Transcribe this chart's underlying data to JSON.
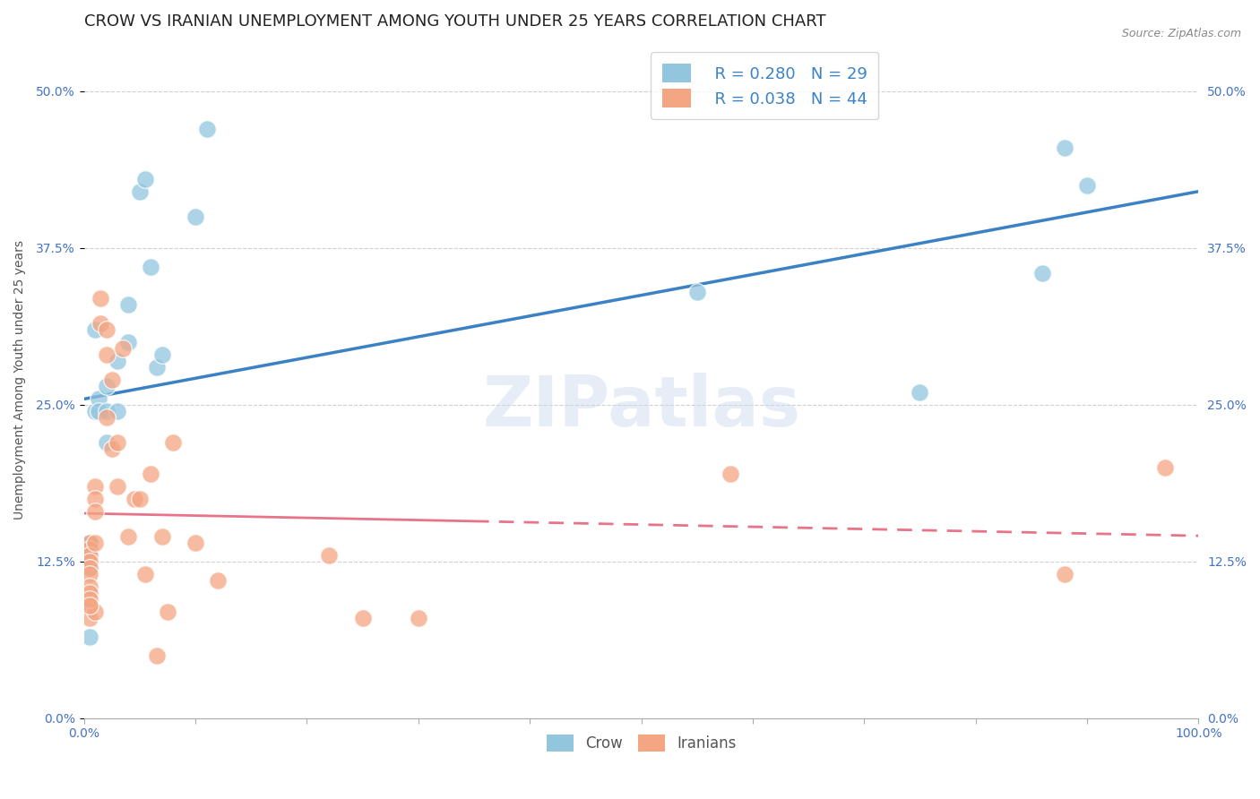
{
  "title": "CROW VS IRANIAN UNEMPLOYMENT AMONG YOUTH UNDER 25 YEARS CORRELATION CHART",
  "source": "Source: ZipAtlas.com",
  "ylabel": "Unemployment Among Youth under 25 years",
  "xlim": [
    0.0,
    1.0
  ],
  "ylim": [
    0.0,
    0.54
  ],
  "yticks": [
    0.0,
    0.125,
    0.25,
    0.375,
    0.5
  ],
  "ytick_labels": [
    "0.0%",
    "12.5%",
    "25.0%",
    "37.5%",
    "50.0%"
  ],
  "xtick_labels_left": "0.0%",
  "xtick_labels_right": "100.0%",
  "legend_crow_R": "R = 0.280",
  "legend_crow_N": "N = 29",
  "legend_iran_R": "R = 0.038",
  "legend_iran_N": "N = 44",
  "crow_color": "#92c5de",
  "iranian_color": "#f4a582",
  "crow_line_color": "#3b82c4",
  "iranian_line_color": "#e8748a",
  "watermark": "ZIPatlas",
  "crow_x": [
    0.005,
    0.005,
    0.005,
    0.005,
    0.005,
    0.005,
    0.01,
    0.01,
    0.013,
    0.013,
    0.02,
    0.02,
    0.02,
    0.03,
    0.03,
    0.04,
    0.04,
    0.05,
    0.055,
    0.06,
    0.065,
    0.07,
    0.1,
    0.11,
    0.55,
    0.75,
    0.86,
    0.88,
    0.9
  ],
  "crow_y": [
    0.14,
    0.135,
    0.13,
    0.14,
    0.12,
    0.065,
    0.31,
    0.245,
    0.255,
    0.245,
    0.265,
    0.245,
    0.22,
    0.285,
    0.245,
    0.3,
    0.33,
    0.42,
    0.43,
    0.36,
    0.28,
    0.29,
    0.4,
    0.47,
    0.34,
    0.26,
    0.355,
    0.455,
    0.425
  ],
  "iranian_x": [
    0.005,
    0.005,
    0.005,
    0.005,
    0.005,
    0.005,
    0.005,
    0.005,
    0.01,
    0.01,
    0.01,
    0.01,
    0.01,
    0.015,
    0.015,
    0.02,
    0.02,
    0.02,
    0.025,
    0.025,
    0.03,
    0.03,
    0.035,
    0.04,
    0.045,
    0.05,
    0.055,
    0.06,
    0.065,
    0.07,
    0.075,
    0.08,
    0.1,
    0.12,
    0.22,
    0.25,
    0.3,
    0.58,
    0.88,
    0.97,
    0.005,
    0.005,
    0.005,
    0.005
  ],
  "iranian_y": [
    0.14,
    0.135,
    0.13,
    0.125,
    0.12,
    0.115,
    0.09,
    0.08,
    0.185,
    0.175,
    0.165,
    0.14,
    0.085,
    0.335,
    0.315,
    0.31,
    0.29,
    0.24,
    0.27,
    0.215,
    0.22,
    0.185,
    0.295,
    0.145,
    0.175,
    0.175,
    0.115,
    0.195,
    0.05,
    0.145,
    0.085,
    0.22,
    0.14,
    0.11,
    0.13,
    0.08,
    0.08,
    0.195,
    0.115,
    0.2,
    0.105,
    0.1,
    0.095,
    0.09
  ],
  "background_color": "#ffffff",
  "grid_color": "#d0d0d0",
  "title_fontsize": 13,
  "axis_label_fontsize": 10,
  "tick_fontsize": 10,
  "legend_fontsize": 13
}
